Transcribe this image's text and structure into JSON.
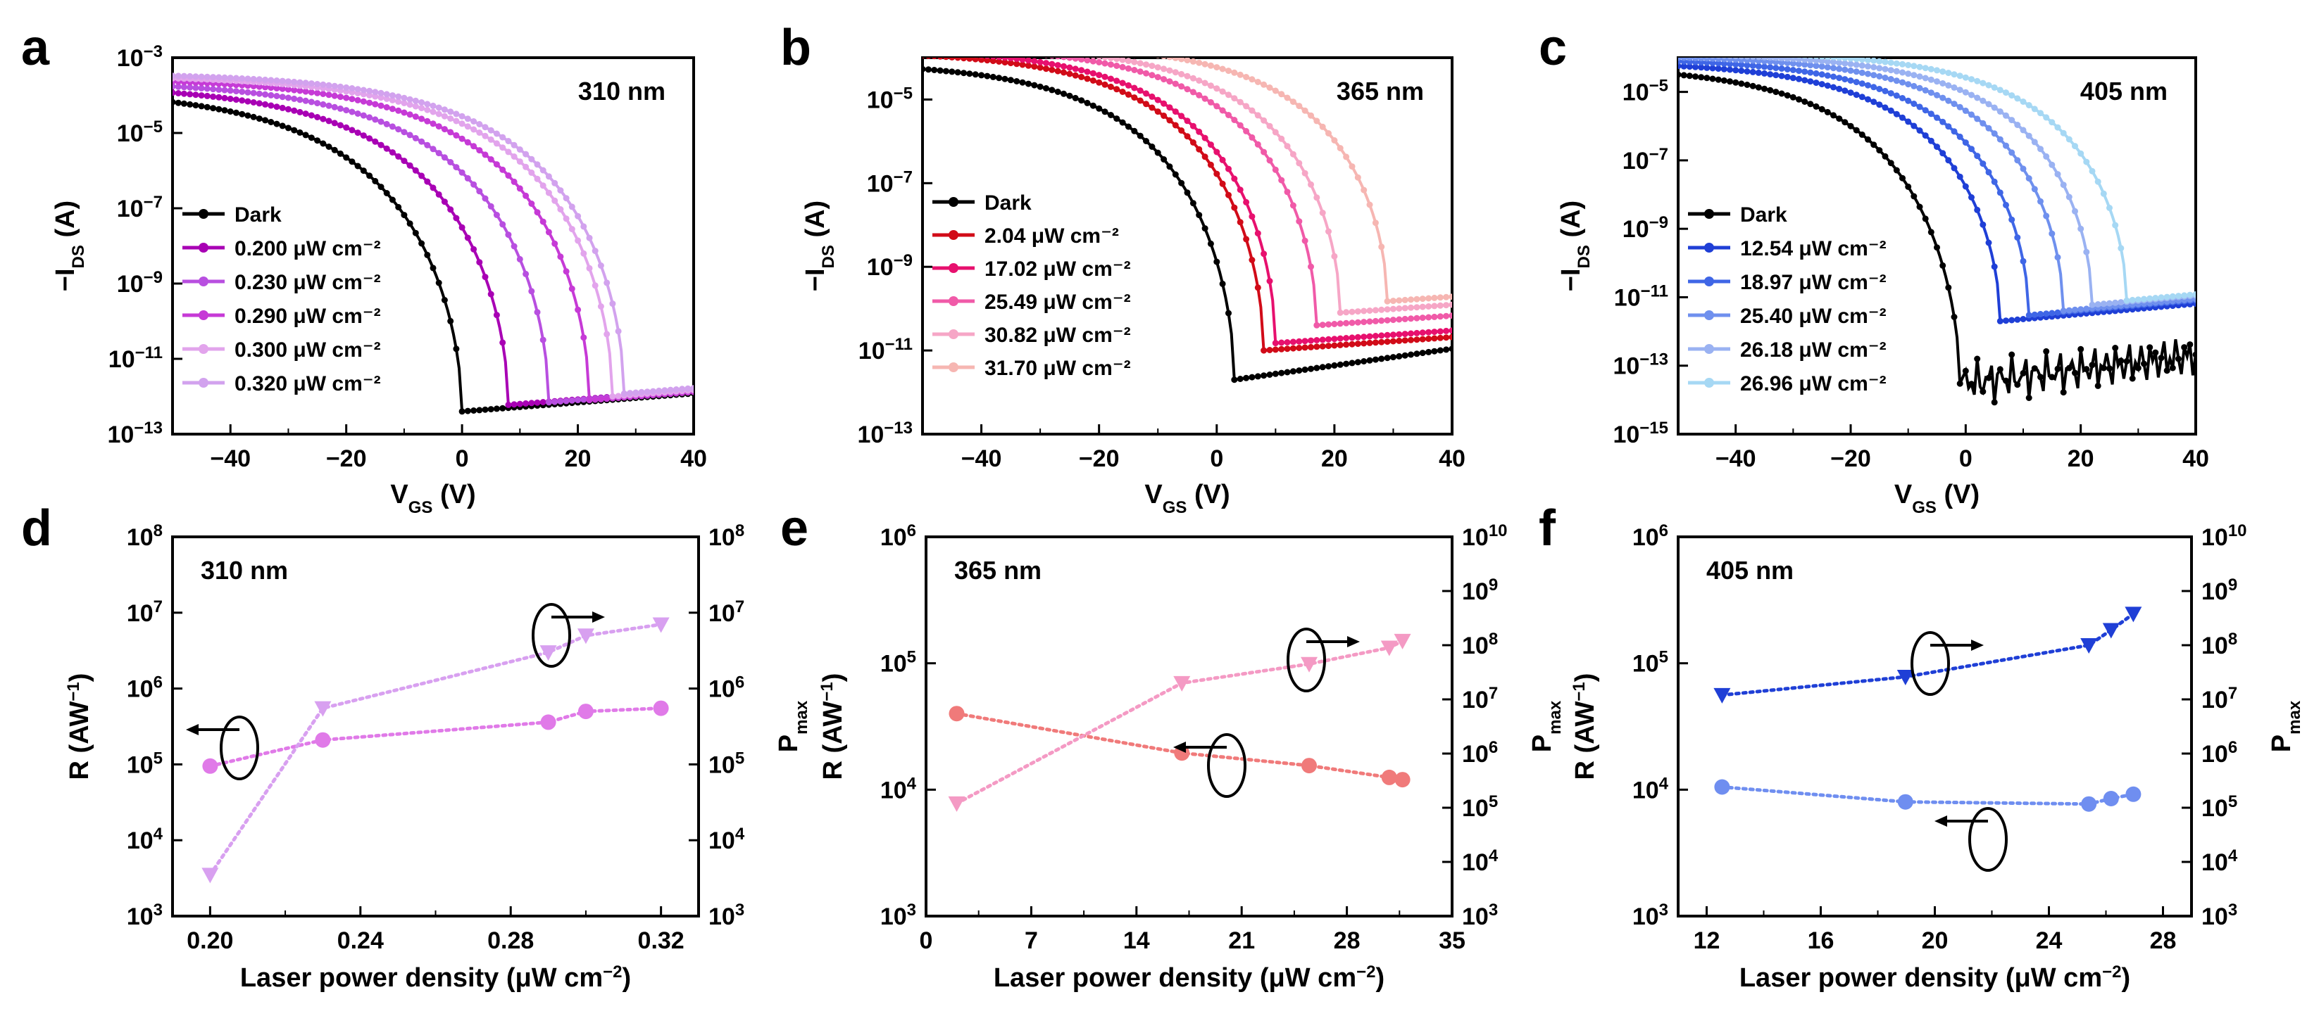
{
  "figure": {
    "mu": "μ"
  },
  "chart_data": [
    {
      "panel": "a",
      "type": "line",
      "label": "310 nm",
      "xlabel": "VGS (V)",
      "ylabel": "-IDS (A)",
      "xlim": [
        -50,
        40
      ],
      "ylim_exp": [
        -13,
        -3
      ],
      "xticks": [
        -40,
        -20,
        0,
        20,
        40
      ],
      "yticks_exp": [
        -13,
        -11,
        -9,
        -7,
        -5,
        -3
      ],
      "series": [
        {
          "name": "Dark",
          "color": "#000000",
          "vth": 0,
          "on": 0.00015,
          "off": 4e-13,
          "floor_slope": 0.012,
          "k": 0.052
        },
        {
          "name": "0.200 μW cm⁻²",
          "color": "#a800b4",
          "vth": 8,
          "on": 0.0002,
          "off": 6e-13,
          "floor_slope": 0.012,
          "k": 0.052
        },
        {
          "name": "0.230 μW cm⁻²",
          "color": "#b84fe0",
          "vth": 15,
          "on": 0.00025,
          "off": 7e-13,
          "floor_slope": 0.012,
          "k": 0.052
        },
        {
          "name": "0.290 μW cm⁻²",
          "color": "#c63ad6",
          "vth": 22,
          "on": 0.0003,
          "off": 8e-13,
          "floor_slope": 0.012,
          "k": 0.052
        },
        {
          "name": "0.300 μW cm⁻²",
          "color": "#e2a4ec",
          "vth": 26,
          "on": 0.00035,
          "off": 1e-12,
          "floor_slope": 0.012,
          "k": 0.052
        },
        {
          "name": "0.320 μW cm⁻²",
          "color": "#d2a2ee",
          "vth": 28,
          "on": 0.0004,
          "off": 1.2e-12,
          "floor_slope": 0.012,
          "k": 0.052
        }
      ]
    },
    {
      "panel": "b",
      "type": "line",
      "label": "365 nm",
      "xlabel": "VGS (V)",
      "ylabel": "-IDS (A)",
      "xlim": [
        -50,
        40
      ],
      "ylim_exp": [
        -13,
        -4
      ],
      "xticks": [
        -40,
        -20,
        0,
        20,
        40
      ],
      "yticks_exp": [
        -13,
        -11,
        -9,
        -7,
        -5
      ],
      "series": [
        {
          "name": "Dark",
          "color": "#000000",
          "vth": 3,
          "on": 8e-05,
          "off": 2e-12,
          "floor_slope": 0.02,
          "k": 0.06
        },
        {
          "name": "2.04 μW cm⁻²",
          "color": "#d10b18",
          "vth": 8,
          "on": 0.00015,
          "off": 1e-11,
          "floor_slope": 0.01,
          "k": 0.06
        },
        {
          "name": "17.02 μW cm⁻²",
          "color": "#e7106e",
          "vth": 10,
          "on": 0.00018,
          "off": 1.5e-11,
          "floor_slope": 0.01,
          "k": 0.06
        },
        {
          "name": "25.49 μW cm⁻²",
          "color": "#f05aa8",
          "vth": 17,
          "on": 0.0002,
          "off": 4e-11,
          "floor_slope": 0.01,
          "k": 0.06
        },
        {
          "name": "30.82 μW cm⁻²",
          "color": "#f6a6c6",
          "vth": 21,
          "on": 0.00022,
          "off": 8e-11,
          "floor_slope": 0.01,
          "k": 0.06
        },
        {
          "name": "31.70 μW cm⁻²",
          "color": "#f6b6b2",
          "vth": 29,
          "on": 0.00025,
          "off": 1.5e-10,
          "floor_slope": 0.01,
          "k": 0.06
        }
      ]
    },
    {
      "panel": "c",
      "type": "line",
      "label": "405 nm",
      "xlabel": "VGS (V)",
      "ylabel": "-IDS (A)",
      "xlim": [
        -50,
        40
      ],
      "ylim_exp": [
        -15,
        -4
      ],
      "xticks": [
        -40,
        -20,
        0,
        20,
        40
      ],
      "yticks_exp": [
        -15,
        -13,
        -11,
        -9,
        -7,
        -5
      ],
      "series": [
        {
          "name": "Dark",
          "color": "#000000",
          "vth": -1,
          "on": 6e-05,
          "off": 3e-14,
          "floor_slope": 0.02,
          "k": 0.06,
          "noisy": true
        },
        {
          "name": "12.54 μW cm⁻²",
          "color": "#1f3fd6",
          "vth": 6,
          "on": 8e-05,
          "off": 2e-12,
          "floor_slope": 0.015,
          "k": 0.06
        },
        {
          "name": "18.97 μW cm⁻²",
          "color": "#3f66e6",
          "vth": 11,
          "on": 0.0001,
          "off": 3e-12,
          "floor_slope": 0.015,
          "k": 0.06
        },
        {
          "name": "25.40 μW cm⁻²",
          "color": "#6f90ee",
          "vth": 17,
          "on": 0.00012,
          "off": 4e-12,
          "floor_slope": 0.015,
          "k": 0.06
        },
        {
          "name": "26.18 μW cm⁻²",
          "color": "#9ab2f2",
          "vth": 22,
          "on": 0.00014,
          "off": 6e-12,
          "floor_slope": 0.015,
          "k": 0.06
        },
        {
          "name": "26.96 μW cm⁻²",
          "color": "#a6d8f4",
          "vth": 28,
          "on": 0.00016,
          "off": 8e-12,
          "floor_slope": 0.015,
          "k": 0.06
        }
      ]
    },
    {
      "panel": "d",
      "type": "scatter",
      "label": "310 nm",
      "xlabel": "Laser power density (μW cm⁻²)",
      "ylabel_left": "R (AW⁻¹)",
      "ylabel_right": "Pmax",
      "xlim": [
        0.19,
        0.33
      ],
      "xticks": [
        0.2,
        0.24,
        0.28,
        0.32
      ],
      "xtick_labels": [
        "0.20",
        "0.24",
        "0.28",
        "0.32"
      ],
      "ylim_left_exp": [
        3,
        8
      ],
      "ylim_right_exp": [
        3,
        8
      ],
      "yticks_left_exp": [
        3,
        4,
        5,
        6,
        7,
        8
      ],
      "yticks_right_exp": [
        3,
        4,
        5,
        6,
        7,
        8
      ],
      "series": [
        {
          "name": "R",
          "axis": "left",
          "marker": "circle",
          "color": "#e07ae8",
          "x": [
            0.2,
            0.23,
            0.29,
            0.3,
            0.32
          ],
          "y": [
            95000.0,
            210000.0,
            360000.0,
            500000.0,
            550000.0
          ]
        },
        {
          "name": "Pmax",
          "axis": "right",
          "marker": "triangle-down",
          "color": "#d8a0f0",
          "x": [
            0.2,
            0.23,
            0.29,
            0.3,
            0.32
          ],
          "y": [
            3500.0,
            550000.0,
            3000000.0,
            5000000.0,
            7000000.0
          ]
        }
      ]
    },
    {
      "panel": "e",
      "type": "scatter",
      "label": "365 nm",
      "xlabel": "Laser power density (μW cm⁻²)",
      "ylabel_left": "R (AW⁻¹)",
      "ylabel_right": "Pmax",
      "xlim": [
        0,
        35
      ],
      "xticks": [
        0,
        7,
        14,
        21,
        28,
        35
      ],
      "xtick_labels": [
        "0",
        "7",
        "14",
        "21",
        "28",
        "35"
      ],
      "ylim_left_exp": [
        3,
        6
      ],
      "ylim_right_exp": [
        3,
        10
      ],
      "yticks_left_exp": [
        3,
        4,
        5,
        6
      ],
      "yticks_right_exp": [
        3,
        4,
        5,
        6,
        7,
        8,
        9,
        10
      ],
      "series": [
        {
          "name": "R",
          "axis": "left",
          "marker": "circle",
          "color": "#f07a7a",
          "x": [
            2.04,
            17.02,
            25.49,
            30.82,
            31.7
          ],
          "y": [
            40000.0,
            19500.0,
            15500.0,
            12500.0,
            12000.0
          ]
        },
        {
          "name": "Pmax",
          "axis": "right",
          "marker": "triangle-down",
          "color": "#f49ac4",
          "x": [
            2.04,
            17.02,
            25.49,
            30.82,
            31.7
          ],
          "y": [
            120000.0,
            20000000.0,
            45000000.0,
            90000000.0,
            120000000.0
          ]
        }
      ]
    },
    {
      "panel": "f",
      "type": "scatter",
      "label": "405 nm",
      "xlabel": "Laser power density (μW cm⁻²)",
      "ylabel_left": "R (AW⁻¹)",
      "ylabel_right": "Pmax",
      "xlim": [
        11,
        29
      ],
      "xticks": [
        12,
        16,
        20,
        24,
        28
      ],
      "xtick_labels": [
        "12",
        "16",
        "20",
        "24",
        "28"
      ],
      "ylim_left_exp": [
        3,
        6
      ],
      "ylim_right_exp": [
        3,
        10
      ],
      "yticks_left_exp": [
        3,
        4,
        5,
        6
      ],
      "yticks_right_exp": [
        3,
        4,
        5,
        6,
        7,
        8,
        9,
        10
      ],
      "series": [
        {
          "name": "R",
          "axis": "left",
          "marker": "circle",
          "color": "#6f8ef0",
          "x": [
            12.54,
            18.97,
            25.4,
            26.18,
            26.96
          ],
          "y": [
            10500.0,
            8000.0,
            7700.0,
            8500.0,
            9200.0
          ]
        },
        {
          "name": "Pmax",
          "axis": "right",
          "marker": "triangle-down",
          "color": "#1f3fd6",
          "x": [
            12.54,
            18.97,
            25.4,
            26.18,
            26.96
          ],
          "y": [
            12000000.0,
            26000000.0,
            100000000.0,
            190000000.0,
            380000000.0
          ]
        }
      ]
    }
  ]
}
